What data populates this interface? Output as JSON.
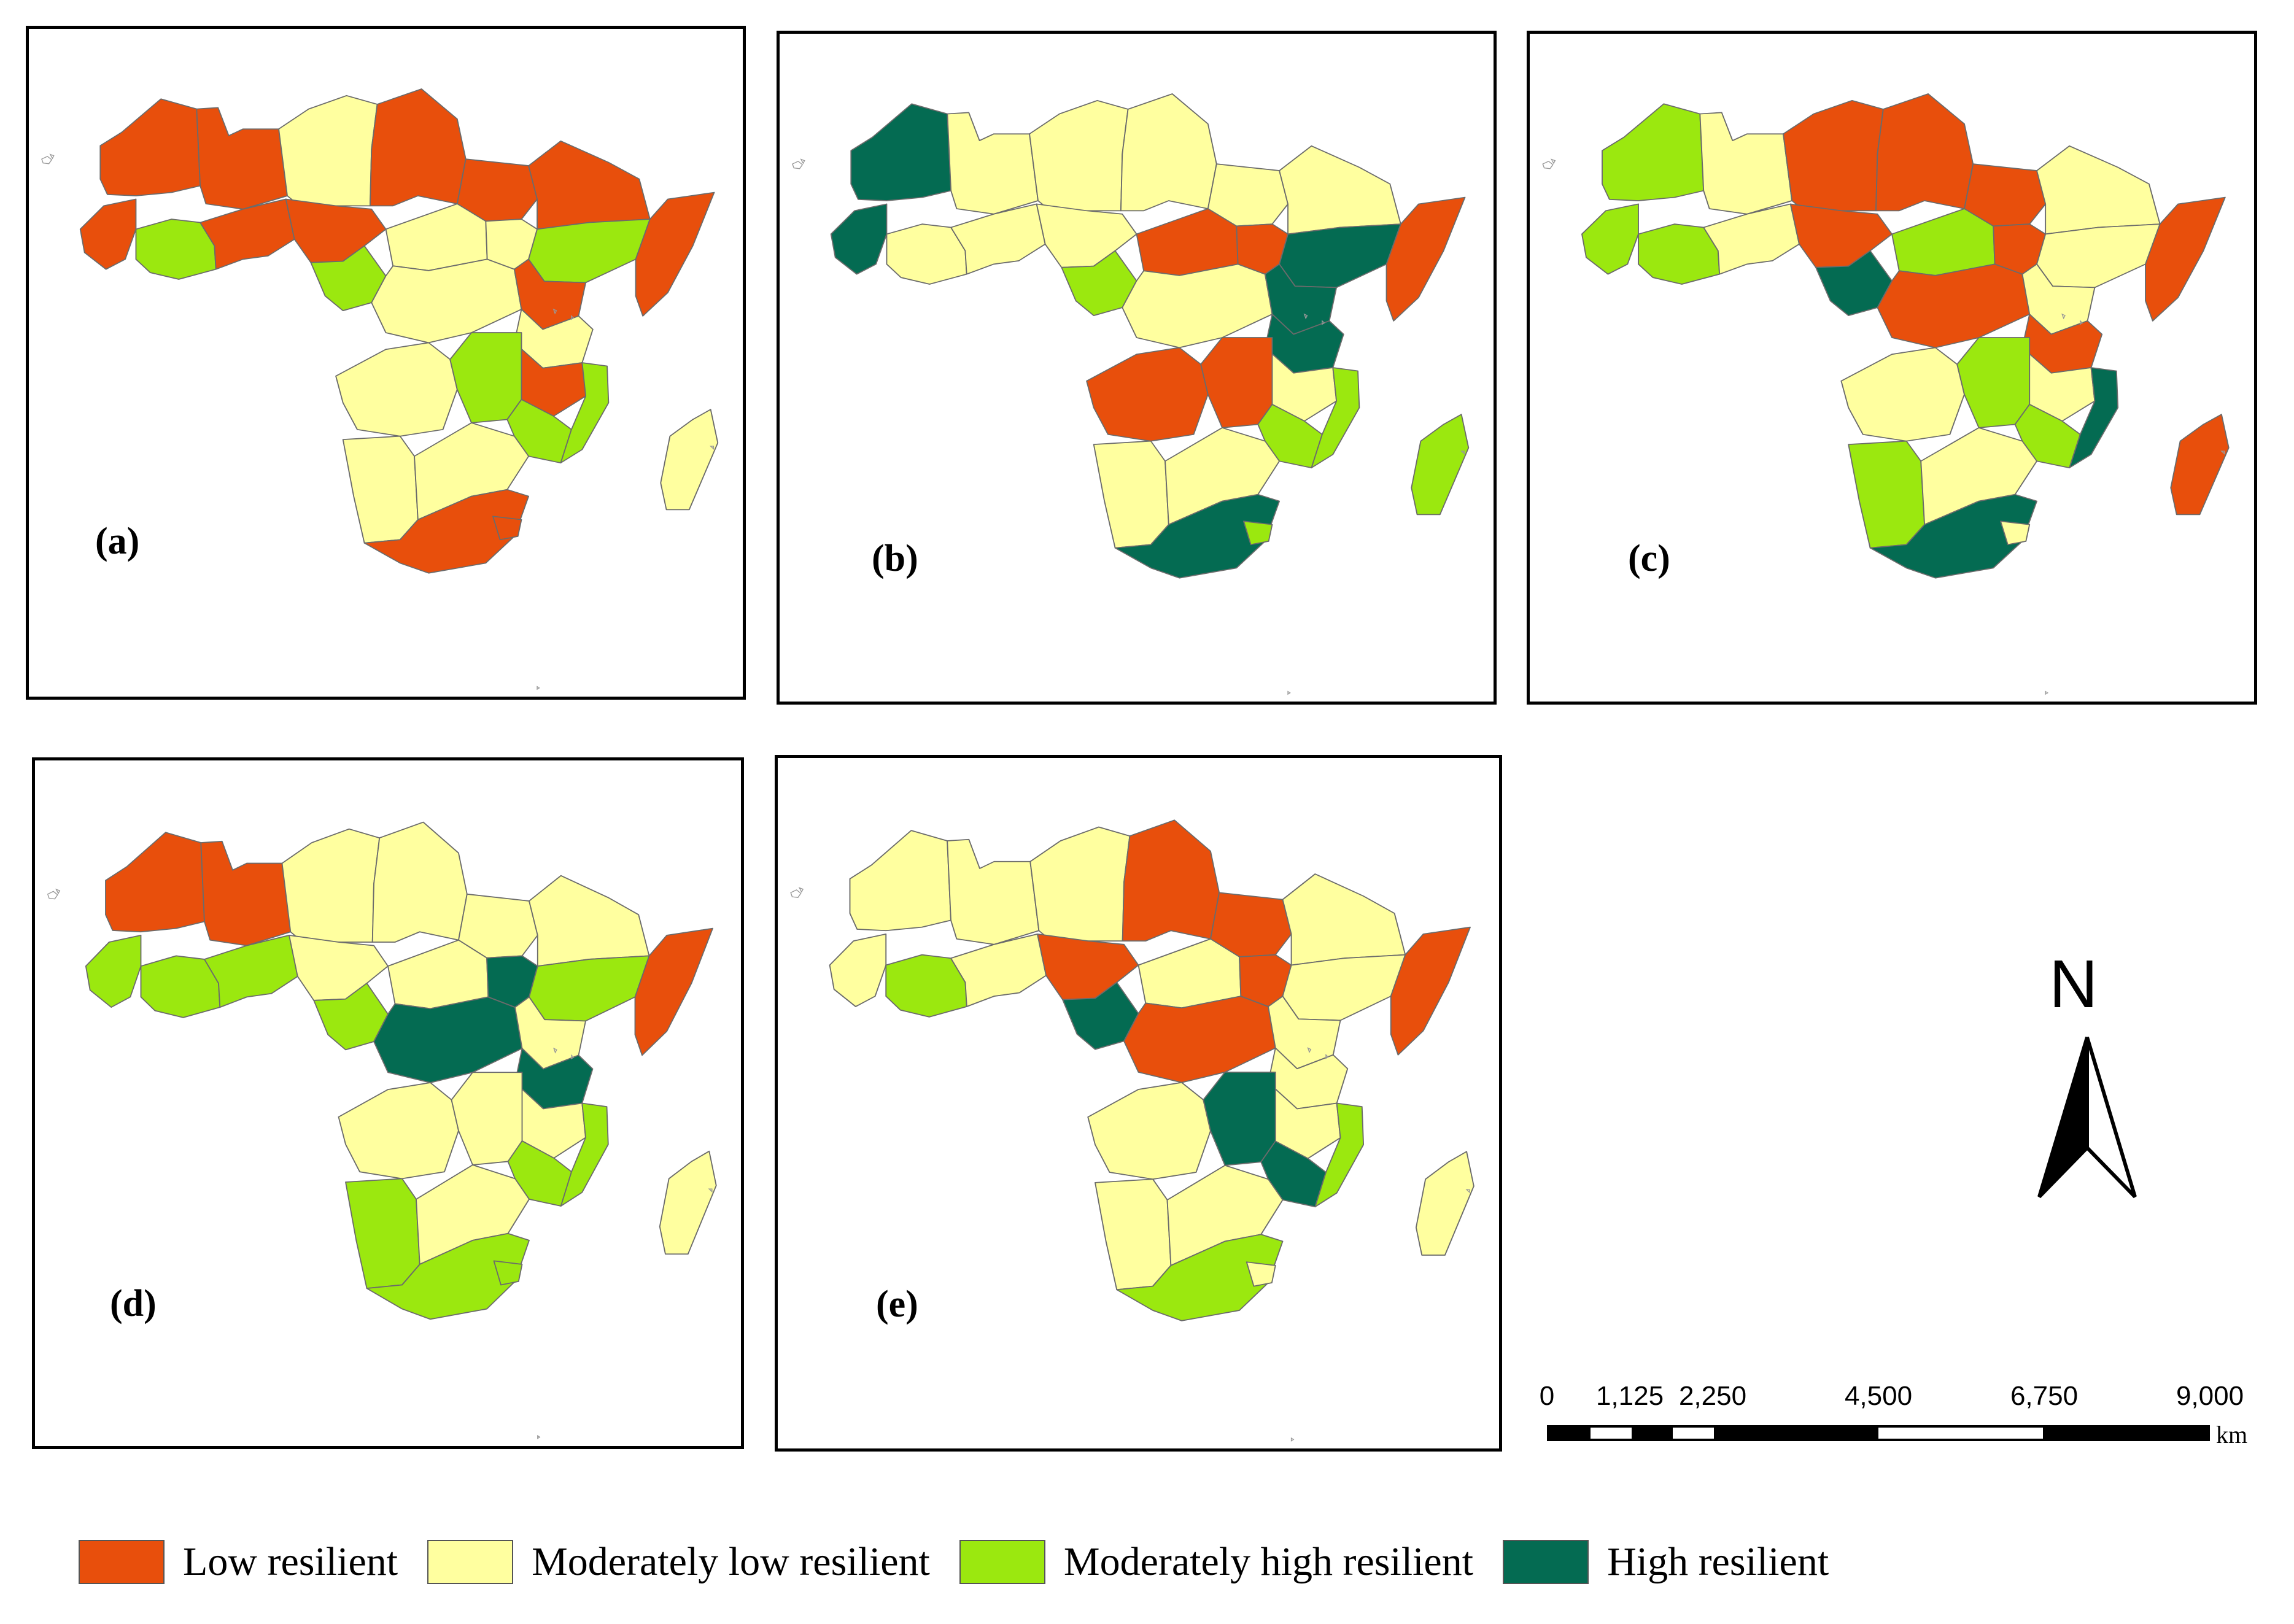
{
  "panels": [
    {
      "label": "(a)",
      "colors": [
        "low",
        "low",
        "modlow",
        "low",
        "low",
        "low",
        "low",
        "modhigh",
        "low",
        "low",
        "modlow",
        "modhigh",
        "modlow",
        "modlow",
        "modhigh",
        "low",
        "low",
        "modlow",
        "low",
        "modlow",
        "modhigh",
        "modhigh",
        "modhigh",
        "modlow",
        "modlow",
        "low",
        "low",
        "modlow"
      ]
    },
    {
      "label": "(b)",
      "colors": [
        "high",
        "modlow",
        "modlow",
        "modlow",
        "modlow",
        "modlow",
        "high",
        "modlow",
        "modlow",
        "modlow",
        "low",
        "modhigh",
        "modlow",
        "low",
        "high",
        "low",
        "high",
        "high",
        "modlow",
        "low",
        "low",
        "modhigh",
        "modhigh",
        "modlow",
        "modlow",
        "high",
        "modhigh",
        "modhigh"
      ]
    },
    {
      "label": "(c)",
      "colors": [
        "modhigh",
        "modlow",
        "low",
        "low",
        "low",
        "modlow",
        "modhigh",
        "modhigh",
        "modlow",
        "low",
        "modhigh",
        "high",
        "low",
        "low",
        "modlow",
        "low",
        "modlow",
        "low",
        "modlow",
        "modlow",
        "modhigh",
        "modhigh",
        "high",
        "modhigh",
        "modlow",
        "high",
        "modlow",
        "low"
      ]
    },
    {
      "label": "(d)",
      "colors": [
        "low",
        "low",
        "modlow",
        "modlow",
        "modlow",
        "modlow",
        "modhigh",
        "modhigh",
        "modhigh",
        "modlow",
        "modlow",
        "modhigh",
        "high",
        "high",
        "modhigh",
        "low",
        "modlow",
        "high",
        "modlow",
        "modlow",
        "modlow",
        "modhigh",
        "modhigh",
        "modhigh",
        "modlow",
        "modhigh",
        "modhigh",
        "modlow"
      ]
    },
    {
      "label": "(e)",
      "colors": [
        "modlow",
        "modlow",
        "modlow",
        "low",
        "low",
        "modlow",
        "modlow",
        "modhigh",
        "modlow",
        "low",
        "modlow",
        "high",
        "low",
        "low",
        "modlow",
        "low",
        "modlow",
        "modlow",
        "modlow",
        "modlow",
        "high",
        "high",
        "modhigh",
        "modlow",
        "modlow",
        "modhigh",
        "modlow",
        "modlow"
      ]
    }
  ],
  "north_arrow": {
    "letter": "N"
  },
  "scale_bar": {
    "ticks": [
      "0",
      "1,125",
      "2,250",
      "4,500",
      "6,750",
      "9,000"
    ],
    "unit": "km",
    "max_km": 9000,
    "tick_km": [
      0,
      1125,
      2250,
      4500,
      6750,
      9000
    ]
  },
  "legend": {
    "items": [
      {
        "key": "low",
        "label": "Low resilient",
        "color": "#e84f0c"
      },
      {
        "key": "modlow",
        "label": "Moderately low resilient",
        "color": "#ffff9f"
      },
      {
        "key": "modhigh",
        "label": "Moderately high resilient",
        "color": "#9be80f"
      },
      {
        "key": "high",
        "label": "High resilient",
        "color": "#046b52"
      }
    ]
  }
}
